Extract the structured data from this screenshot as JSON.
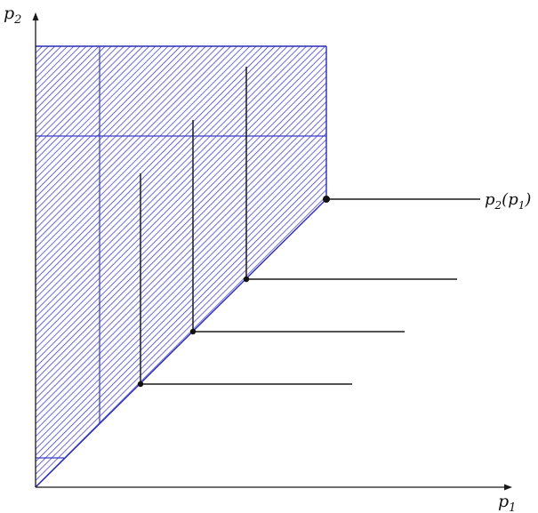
{
  "labels": {
    "y_axis": "p",
    "y_axis_sub": "2",
    "x_axis": "p",
    "x_axis_sub": "1",
    "curve": "p",
    "curve_sub": "2",
    "curve_arg": "(p",
    "curve_arg_sub": "1",
    "curve_close": ")"
  },
  "colors": {
    "hatch": "#3a3ad0",
    "region_border": "#2c2cb8",
    "lines": "#1a1a1a"
  }
}
